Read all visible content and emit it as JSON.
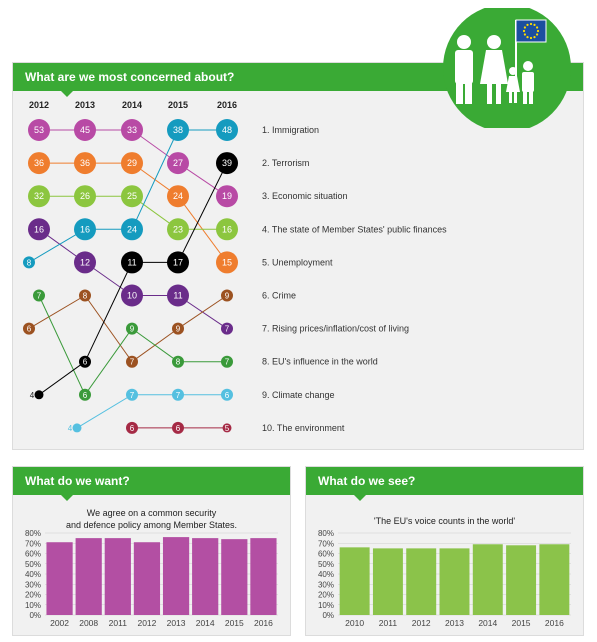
{
  "colors": {
    "green": "#3aaa35",
    "panel": "#f1f1f1",
    "purple": "#b34fa3",
    "lightgreen": "#8bc34a"
  },
  "banner": {
    "title": "What are we most concerned about?"
  },
  "logo": {
    "name": "family-with-eu-flag-icon"
  },
  "chart_data": [
    {
      "type": "line",
      "title": "What are we most concerned about?",
      "x": [
        "2012",
        "2013",
        "2014",
        "2015",
        "2016"
      ],
      "series": [
        {
          "name": "1. Immigration",
          "color": "#b84aa5",
          "values": [
            53,
            45,
            33,
            27,
            19
          ]
        },
        {
          "name": "2. Terrorism",
          "color": "#ef7d2e",
          "values": [
            36,
            36,
            29,
            24,
            15
          ]
        },
        {
          "name": "3. Economic situation",
          "color": "#8cc63f",
          "values": [
            32,
            26,
            25,
            23,
            16
          ]
        },
        {
          "name": "4. The state of Member States' public finances",
          "color": "#6a2c8a",
          "values": [
            16,
            12,
            10,
            11,
            7
          ]
        },
        {
          "name": "5. Unemployment",
          "color": "#159bbf",
          "values": [
            8,
            16,
            24,
            38,
            48
          ]
        },
        {
          "name": "6. Crime",
          "color": "#9c5221",
          "values": [
            6,
            8,
            7,
            9,
            9
          ]
        },
        {
          "name": "7. Rising prices/inflation/cost of living",
          "color": "#3a9a3a",
          "values": [
            7,
            6,
            9,
            8,
            7
          ]
        },
        {
          "name": "8. EU's influence in the world",
          "color": "#000000",
          "values": [
            4,
            6,
            11,
            17,
            39
          ]
        },
        {
          "name": "9. Climate change",
          "color": "#55c0e0",
          "values": [
            null,
            4,
            7,
            7,
            6
          ]
        },
        {
          "name": "10. The environment",
          "color": "#a52a45",
          "values": [
            null,
            null,
            6,
            6,
            5
          ]
        }
      ],
      "rows": [
        [
          {
            "s": 0,
            "v": 53
          },
          {
            "s": 0,
            "v": 45
          },
          {
            "s": 0,
            "v": 33
          },
          {
            "s": 4,
            "v": 38
          },
          {
            "s": 4,
            "v": 48
          }
        ],
        [
          {
            "s": 1,
            "v": 36
          },
          {
            "s": 1,
            "v": 36
          },
          {
            "s": 1,
            "v": 29
          },
          {
            "s": 0,
            "v": 27
          },
          {
            "s": 7,
            "v": 39
          }
        ],
        [
          {
            "s": 2,
            "v": 32
          },
          {
            "s": 2,
            "v": 26
          },
          {
            "s": 2,
            "v": 25
          },
          {
            "s": 1,
            "v": 24
          },
          {
            "s": 0,
            "v": 19
          }
        ],
        [
          {
            "s": 3,
            "v": 16
          },
          {
            "s": 4,
            "v": 16
          },
          {
            "s": 4,
            "v": 24
          },
          {
            "s": 2,
            "v": 23
          },
          {
            "s": 2,
            "v": 16
          }
        ],
        [
          {
            "s": 4,
            "v": 8
          },
          {
            "s": 3,
            "v": 12
          },
          {
            "s": 7,
            "v": 11
          },
          {
            "s": 7,
            "v": 17
          },
          {
            "s": 1,
            "v": 15
          }
        ],
        [
          {
            "s": 6,
            "v": 7
          },
          {
            "s": 5,
            "v": 8
          },
          {
            "s": 3,
            "v": 10
          },
          {
            "s": 3,
            "v": 11
          },
          {
            "s": 5,
            "v": 9
          }
        ],
        [
          {
            "s": 5,
            "v": 6
          },
          null,
          {
            "s": 6,
            "v": 9
          },
          {
            "s": 5,
            "v": 9
          },
          {
            "s": 3,
            "v": 7
          }
        ],
        [
          null,
          {
            "s": 7,
            "v": 6
          },
          {
            "s": 5,
            "v": 7
          },
          {
            "s": 6,
            "v": 8
          },
          {
            "s": 6,
            "v": 7
          }
        ],
        [
          {
            "s": 7,
            "v": 4
          },
          {
            "s": 6,
            "v": 6
          },
          {
            "s": 8,
            "v": 7
          },
          {
            "s": 8,
            "v": 7
          },
          {
            "s": 8,
            "v": 6
          }
        ],
        [
          null,
          {
            "s": 8,
            "v": 4
          },
          {
            "s": 9,
            "v": 6
          },
          {
            "s": 9,
            "v": 6
          },
          {
            "s": 9,
            "v": 5
          }
        ]
      ],
      "legend": [
        "1. Immigration",
        "2. Terrorism",
        "3. Economic situation",
        "4. The state of Member States' public finances",
        "5. Unemployment",
        "6. Crime",
        "7. Rising prices/inflation/cost of living",
        "8. EU's influence in the world",
        "9. Climate change",
        "10. The environment"
      ]
    },
    {
      "type": "bar",
      "title": "What do we want?",
      "subtitle": [
        "We agree on a common security",
        "and defence policy among Member States."
      ],
      "categories": [
        "2002",
        "2008",
        "2011",
        "2012",
        "2013",
        "2014",
        "2015",
        "2016"
      ],
      "values": [
        71,
        75,
        75,
        71,
        76,
        75,
        74,
        75
      ],
      "yticks": [
        "0%",
        "10%",
        "20%",
        "30%",
        "40%",
        "50%",
        "60%",
        "70%",
        "80%"
      ],
      "ylim": [
        0,
        80
      ],
      "color": "#b34fa3"
    },
    {
      "type": "bar",
      "title": "What do we see?",
      "subtitle": [
        "'The EU's voice counts in the world'"
      ],
      "categories": [
        "2010",
        "2011",
        "2012",
        "2013",
        "2014",
        "2015",
        "2016"
      ],
      "values": [
        66,
        65,
        65,
        65,
        69,
        68,
        69
      ],
      "yticks": [
        "0%",
        "10%",
        "20%",
        "30%",
        "40%",
        "50%",
        "60%",
        "70%",
        "80%"
      ],
      "ylim": [
        0,
        80
      ],
      "color": "#8bc34a"
    }
  ]
}
